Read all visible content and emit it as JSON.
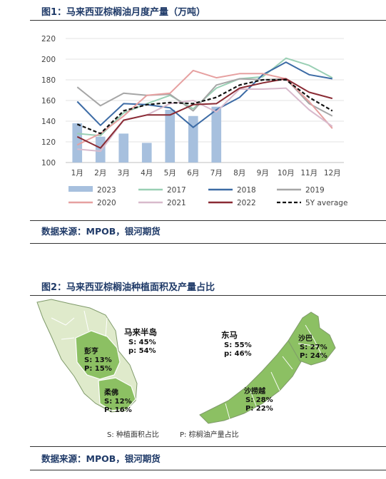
{
  "figure1": {
    "title": "图1：马来西亚棕榈油月度产量（万吨）",
    "source": "数据来源：MPOB，银河期货"
  },
  "figure2": {
    "title": "图2：马来西亚棕榈油种植面积及产量占比",
    "source": "数据来源：MPOB，银河期货",
    "regions": [
      {
        "name": "马来半岛",
        "s": "S: 45%",
        "p": "p: 54%"
      },
      {
        "name": "东马",
        "s": "S: 55%",
        "p": "p: 46%"
      },
      {
        "name": "彭亨",
        "s": "S: 13%",
        "p": "P: 15%"
      },
      {
        "name": "柔佛",
        "s": "S: 12%",
        "p": "P: 16%"
      },
      {
        "name": "沙巴",
        "s": "S: 27%",
        "p": "P: 24%"
      },
      {
        "name": "沙捞越",
        "s": "S: 28%",
        "p": "P: 22%"
      }
    ],
    "legend": {
      "s": "S: 种植面积占比",
      "p": "P: 棕榈油产量占比"
    },
    "colors": {
      "state_green": "#8cc063",
      "region_light": "#dfeacb",
      "outline": "#7f9a6a"
    }
  },
  "chart_data": {
    "type": "bar+line",
    "categories": [
      "1月",
      "2月",
      "3月",
      "4月",
      "5月",
      "6月",
      "7月",
      "8月",
      "9月",
      "10月",
      "11月",
      "12月"
    ],
    "ylim": [
      100,
      220
    ],
    "yticks": [
      100,
      120,
      140,
      160,
      180,
      200,
      220
    ],
    "grid": "horizontal",
    "legend_position": "bottom",
    "bars": {
      "name": "2023",
      "color": "#a7c0de",
      "values": [
        138,
        125,
        128,
        119,
        151,
        145,
        154,
        100,
        100,
        100,
        100,
        100
      ]
    },
    "series": [
      {
        "name": "2017",
        "color": "#99cfb4",
        "dashed": false,
        "values": [
          128,
          126,
          148,
          157,
          165,
          152,
          172,
          181,
          183,
          201,
          194,
          182
        ]
      },
      {
        "name": "2018",
        "color": "#3c6ba5",
        "dashed": false,
        "values": [
          159,
          136,
          157,
          156,
          153,
          134,
          151,
          163,
          185,
          197,
          185,
          181
        ]
      },
      {
        "name": "2019",
        "color": "#a6a6a6",
        "dashed": false,
        "values": [
          173,
          155,
          167,
          165,
          166,
          150,
          175,
          181,
          180,
          181,
          157,
          145
        ]
      },
      {
        "name": "2020",
        "color": "#e6a0a0",
        "dashed": false,
        "values": [
          117,
          128,
          145,
          165,
          167,
          189,
          182,
          186,
          186,
          181,
          159,
          133
        ]
      },
      {
        "name": "2021",
        "color": "#d8bacc",
        "dashed": false,
        "values": [
          113,
          111,
          141,
          146,
          157,
          160,
          149,
          171,
          171,
          172,
          151,
          135
        ]
      },
      {
        "name": "2022",
        "color": "#8a2b34",
        "dashed": false,
        "values": [
          125,
          114,
          141,
          146,
          146,
          156,
          157,
          172,
          177,
          181,
          168,
          162
        ]
      },
      {
        "name": "5Y average",
        "color": "#111111",
        "dashed": true,
        "values": [
          137,
          128,
          150,
          156,
          158,
          157,
          163,
          175,
          180,
          180,
          163,
          150
        ]
      }
    ]
  }
}
